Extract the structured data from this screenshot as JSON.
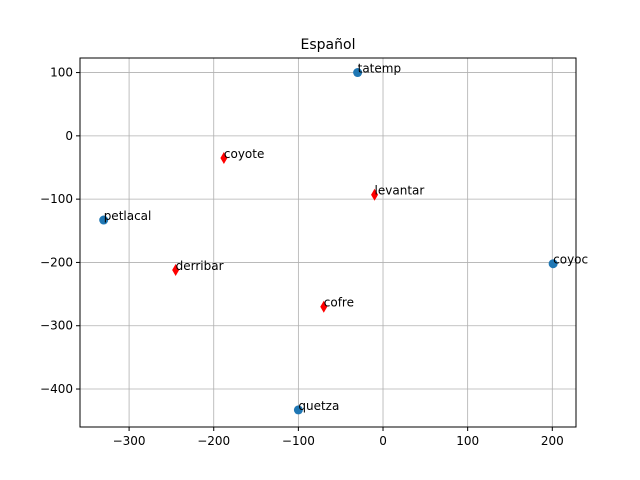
{
  "chart_data": {
    "type": "scatter",
    "title": "Español",
    "xlabel": "",
    "ylabel": "",
    "xlim": [
      -358,
      228
    ],
    "ylim": [
      -460,
      123
    ],
    "xticks": [
      -300,
      -200,
      -100,
      0,
      100,
      200
    ],
    "yticks": [
      -400,
      -300,
      -200,
      -100,
      0,
      100
    ],
    "xtick_labels": [
      "−300",
      "−200",
      "−100",
      "0",
      "100",
      "200"
    ],
    "ytick_labels": [
      "−400",
      "−300",
      "−200",
      "−100",
      "0",
      "100"
    ],
    "grid": true,
    "series": [
      {
        "marker": "circle",
        "color": "#1f77b4",
        "points": [
          {
            "label": "tatemp",
            "x": -30,
            "y": 100
          },
          {
            "label": "petlacal",
            "x": -330,
            "y": -133
          },
          {
            "label": "coyoc",
            "x": 201,
            "y": -202
          },
          {
            "label": "quetza",
            "x": -100,
            "y": -433
          }
        ]
      },
      {
        "marker": "diamond",
        "color": "#ff0000",
        "points": [
          {
            "label": "coyote",
            "x": -188,
            "y": -35
          },
          {
            "label": "levantar",
            "x": -10,
            "y": -93
          },
          {
            "label": "derribar",
            "x": -245,
            "y": -212
          },
          {
            "label": "cofre",
            "x": -70,
            "y": -270
          }
        ]
      }
    ]
  }
}
